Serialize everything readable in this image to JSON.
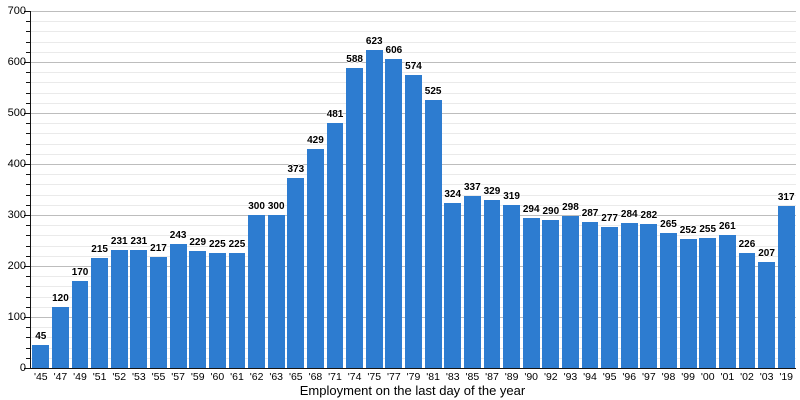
{
  "chart_data": {
    "type": "bar",
    "title": "",
    "xlabel": "Employment on the last day of the year",
    "ylabel": "",
    "categories": [
      "'45",
      "'47",
      "'49",
      "'51",
      "'52",
      "'53",
      "'55",
      "'57",
      "'59",
      "'60",
      "'61",
      "'62",
      "'63",
      "'65",
      "'68",
      "'71",
      "'74",
      "'75",
      "'77",
      "'79",
      "'81",
      "'83",
      "'85",
      "'87",
      "'89",
      "'90",
      "'92",
      "'93",
      "'94",
      "'95",
      "'96",
      "'97",
      "'98",
      "'99",
      "'00",
      "'01",
      "'02",
      "'03",
      "'19"
    ],
    "values": [
      45,
      120,
      170,
      215,
      231,
      231,
      217,
      243,
      229,
      225,
      225,
      300,
      300,
      373,
      429,
      481,
      588,
      623,
      606,
      574,
      525,
      324,
      337,
      329,
      319,
      294,
      290,
      298,
      287,
      277,
      284,
      282,
      265,
      252,
      255,
      261,
      226,
      207,
      317
    ],
    "value_labels": true,
    "ylim": [
      0,
      700
    ],
    "y_ticks": [
      "0",
      "100",
      "200",
      "300",
      "400",
      "500",
      "600",
      "700"
    ],
    "y_major_step": 100,
    "y_minor_step": 20,
    "grid": "on",
    "legend": "none",
    "bar_color": "#2d7cd0",
    "grid_major_color": "#bdbdbd",
    "grid_minor_color": "#eaeaea",
    "axis_color": "#141414",
    "text_color": "#000000"
  }
}
